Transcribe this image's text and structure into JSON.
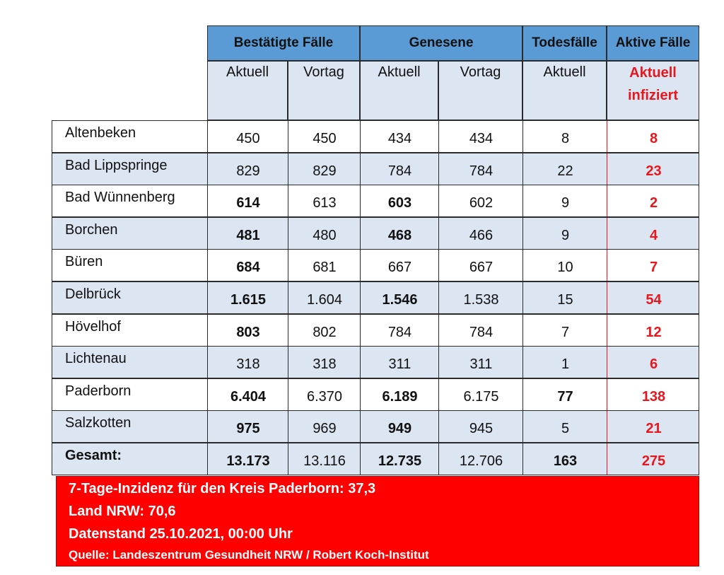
{
  "header": {
    "groups": [
      "Bestätigte Fälle",
      "Genesene",
      "Todesfälle",
      "Aktive Fälle"
    ],
    "sub": [
      "Aktuell",
      "Vortag",
      "Aktuell",
      "Vortag",
      "Aktuell",
      "Aktuell infiziert"
    ]
  },
  "rows": [
    {
      "name": "Altenbeken",
      "c1": "450",
      "c2": "450",
      "c3": "434",
      "c4": "434",
      "c5": "8",
      "c6": "8"
    },
    {
      "name": "Bad Lippspringe",
      "c1": "829",
      "c2": "829",
      "c3": "784",
      "c4": "784",
      "c5": "22",
      "c6": "23"
    },
    {
      "name": "Bad Wünnenberg",
      "c1": "614",
      "c2": "613",
      "c3": "603",
      "c4": "602",
      "c5": "9",
      "c6": "2"
    },
    {
      "name": "Borchen",
      "c1": "481",
      "c2": "480",
      "c3": "468",
      "c4": "466",
      "c5": "9",
      "c6": "4"
    },
    {
      "name": "Büren",
      "c1": "684",
      "c2": "681",
      "c3": "667",
      "c4": "667",
      "c5": "10",
      "c6": "7"
    },
    {
      "name": "Delbrück",
      "c1": "1.615",
      "c2": "1.604",
      "c3": "1.546",
      "c4": "1.538",
      "c5": "15",
      "c6": "54"
    },
    {
      "name": "Hövelhof",
      "c1": "803",
      "c2": "802",
      "c3": "784",
      "c4": "784",
      "c5": "7",
      "c6": "12"
    },
    {
      "name": "Lichtenau",
      "c1": "318",
      "c2": "318",
      "c3": "311",
      "c4": "311",
      "c5": "1",
      "c6": "6"
    },
    {
      "name": "Paderborn",
      "c1": "6.404",
      "c2": "6.370",
      "c3": "6.189",
      "c4": "6.175",
      "c5": "77",
      "c6": "138"
    },
    {
      "name": "Salzkotten",
      "c1": "975",
      "c2": "969",
      "c3": "949",
      "c4": "945",
      "c5": "5",
      "c6": "21"
    },
    {
      "name": "Gesamt:",
      "c1": "13.173",
      "c2": "13.116",
      "c3": "12.735",
      "c4": "12.706",
      "c5": "163",
      "c6": "275"
    }
  ],
  "info": {
    "line1": "7-Tage-Inzidenz für den Kreis Paderborn: 37,3",
    "line2": "Land NRW: 70,6",
    "line3": "Datenstand 25.10.2021, 00:00 Uhr",
    "line4": "Quelle: Landeszentrum Gesundheit NRW / Robert Koch-Institut"
  },
  "colors": {
    "header_blue": "#5b9bd5",
    "row_light": "#dce6f2",
    "accent_red": "#e8161d",
    "info_red": "#ff0000"
  }
}
